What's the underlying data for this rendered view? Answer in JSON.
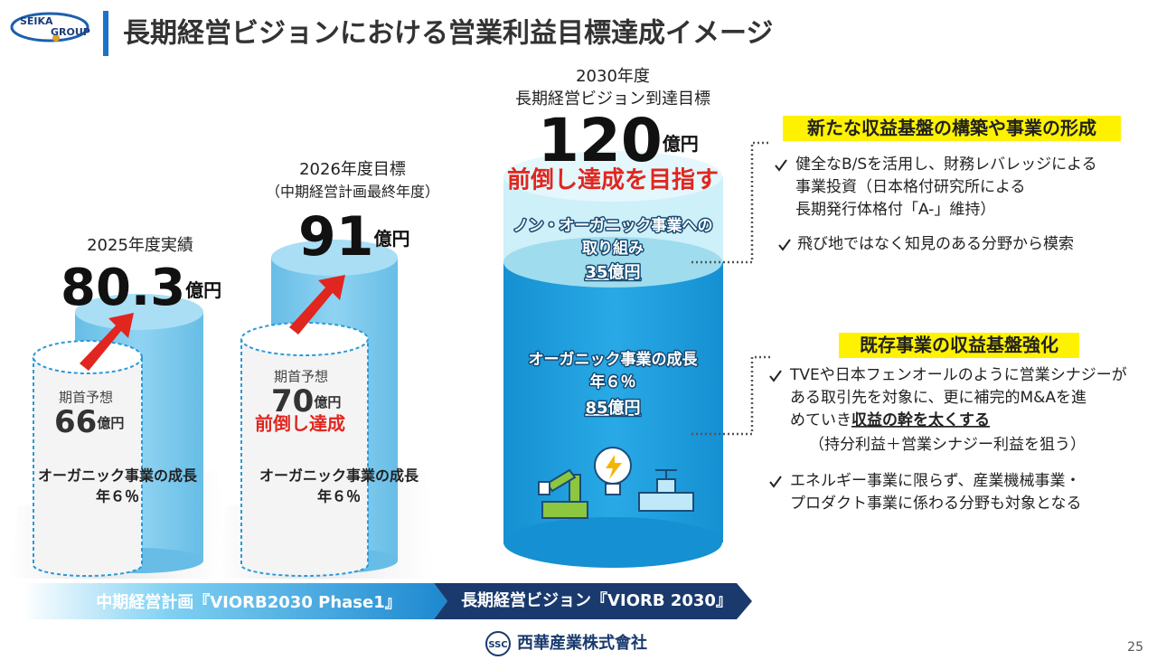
{
  "header": {
    "logo": [
      "SEIKA",
      "GROUP"
    ],
    "title": "長期経営ビジョンにおける営業利益目標達成イメージ"
  },
  "columns": [
    {
      "label": [
        "2025年度実績"
      ],
      "value": "80.3",
      "unit": "億円",
      "forecast": {
        "label": "期首予想",
        "value": "66",
        "unit": "億円"
      },
      "growth": [
        "オーガニック事業の成長",
        "年６％"
      ]
    },
    {
      "label": [
        "2026年度目標",
        "（中期経営計画最終年度）"
      ],
      "value": "91",
      "unit": "億円",
      "forecast": {
        "label": "期首予想",
        "value": "70",
        "unit": "億円",
        "note": "前倒し達成"
      },
      "growth": [
        "オーガニック事業の成長",
        "年６％"
      ]
    },
    {
      "label": [
        "2030年度",
        "長期経営ビジョン到達目標"
      ],
      "value": "120",
      "unit": "億円",
      "note": "前倒し達成を目指す",
      "segments": [
        {
          "lines": [
            "ノン・オーガニック事業への",
            "取り組み"
          ],
          "amount": "35億円"
        },
        {
          "lines": [
            "オーガニック事業の成長",
            "年６％"
          ],
          "amount": "85億円"
        }
      ]
    }
  ],
  "timeline": [
    "中期経営計画『VIORB2030 Phase1』",
    "長期経営ビジョン『VIORB 2030』"
  ],
  "sections": [
    {
      "heading": "新たな収益基盤の構築や事業の形成",
      "bullets": [
        {
          "lines": [
            "健全なB/Sを活用し、財務レバレッジによる",
            "事業投資（日本格付研究所による",
            "長期発行体格付「A-」維持）"
          ]
        },
        {
          "lines": [
            "飛び地ではなく知見のある分野から模索"
          ]
        }
      ]
    },
    {
      "heading": "既存事業の収益基盤強化",
      "bullets": [
        {
          "lines": [
            "TVEや日本フェンオールのように営業シナジーが",
            "ある取引先を対象に、更に補完的M&Aを進",
            "めていき"
          ],
          "emphasis": "収益の幹を太くする",
          "after": "（持分利益＋営業シナジー利益を狙う）"
        },
        {
          "lines": [
            "エネルギー事業に限らず、産業機械事業・",
            "プロダクト事業に係わる分野も対象となる"
          ]
        }
      ]
    }
  ],
  "footer": {
    "badge": "SSC",
    "company": "西華産業株式會社",
    "page": "25"
  }
}
